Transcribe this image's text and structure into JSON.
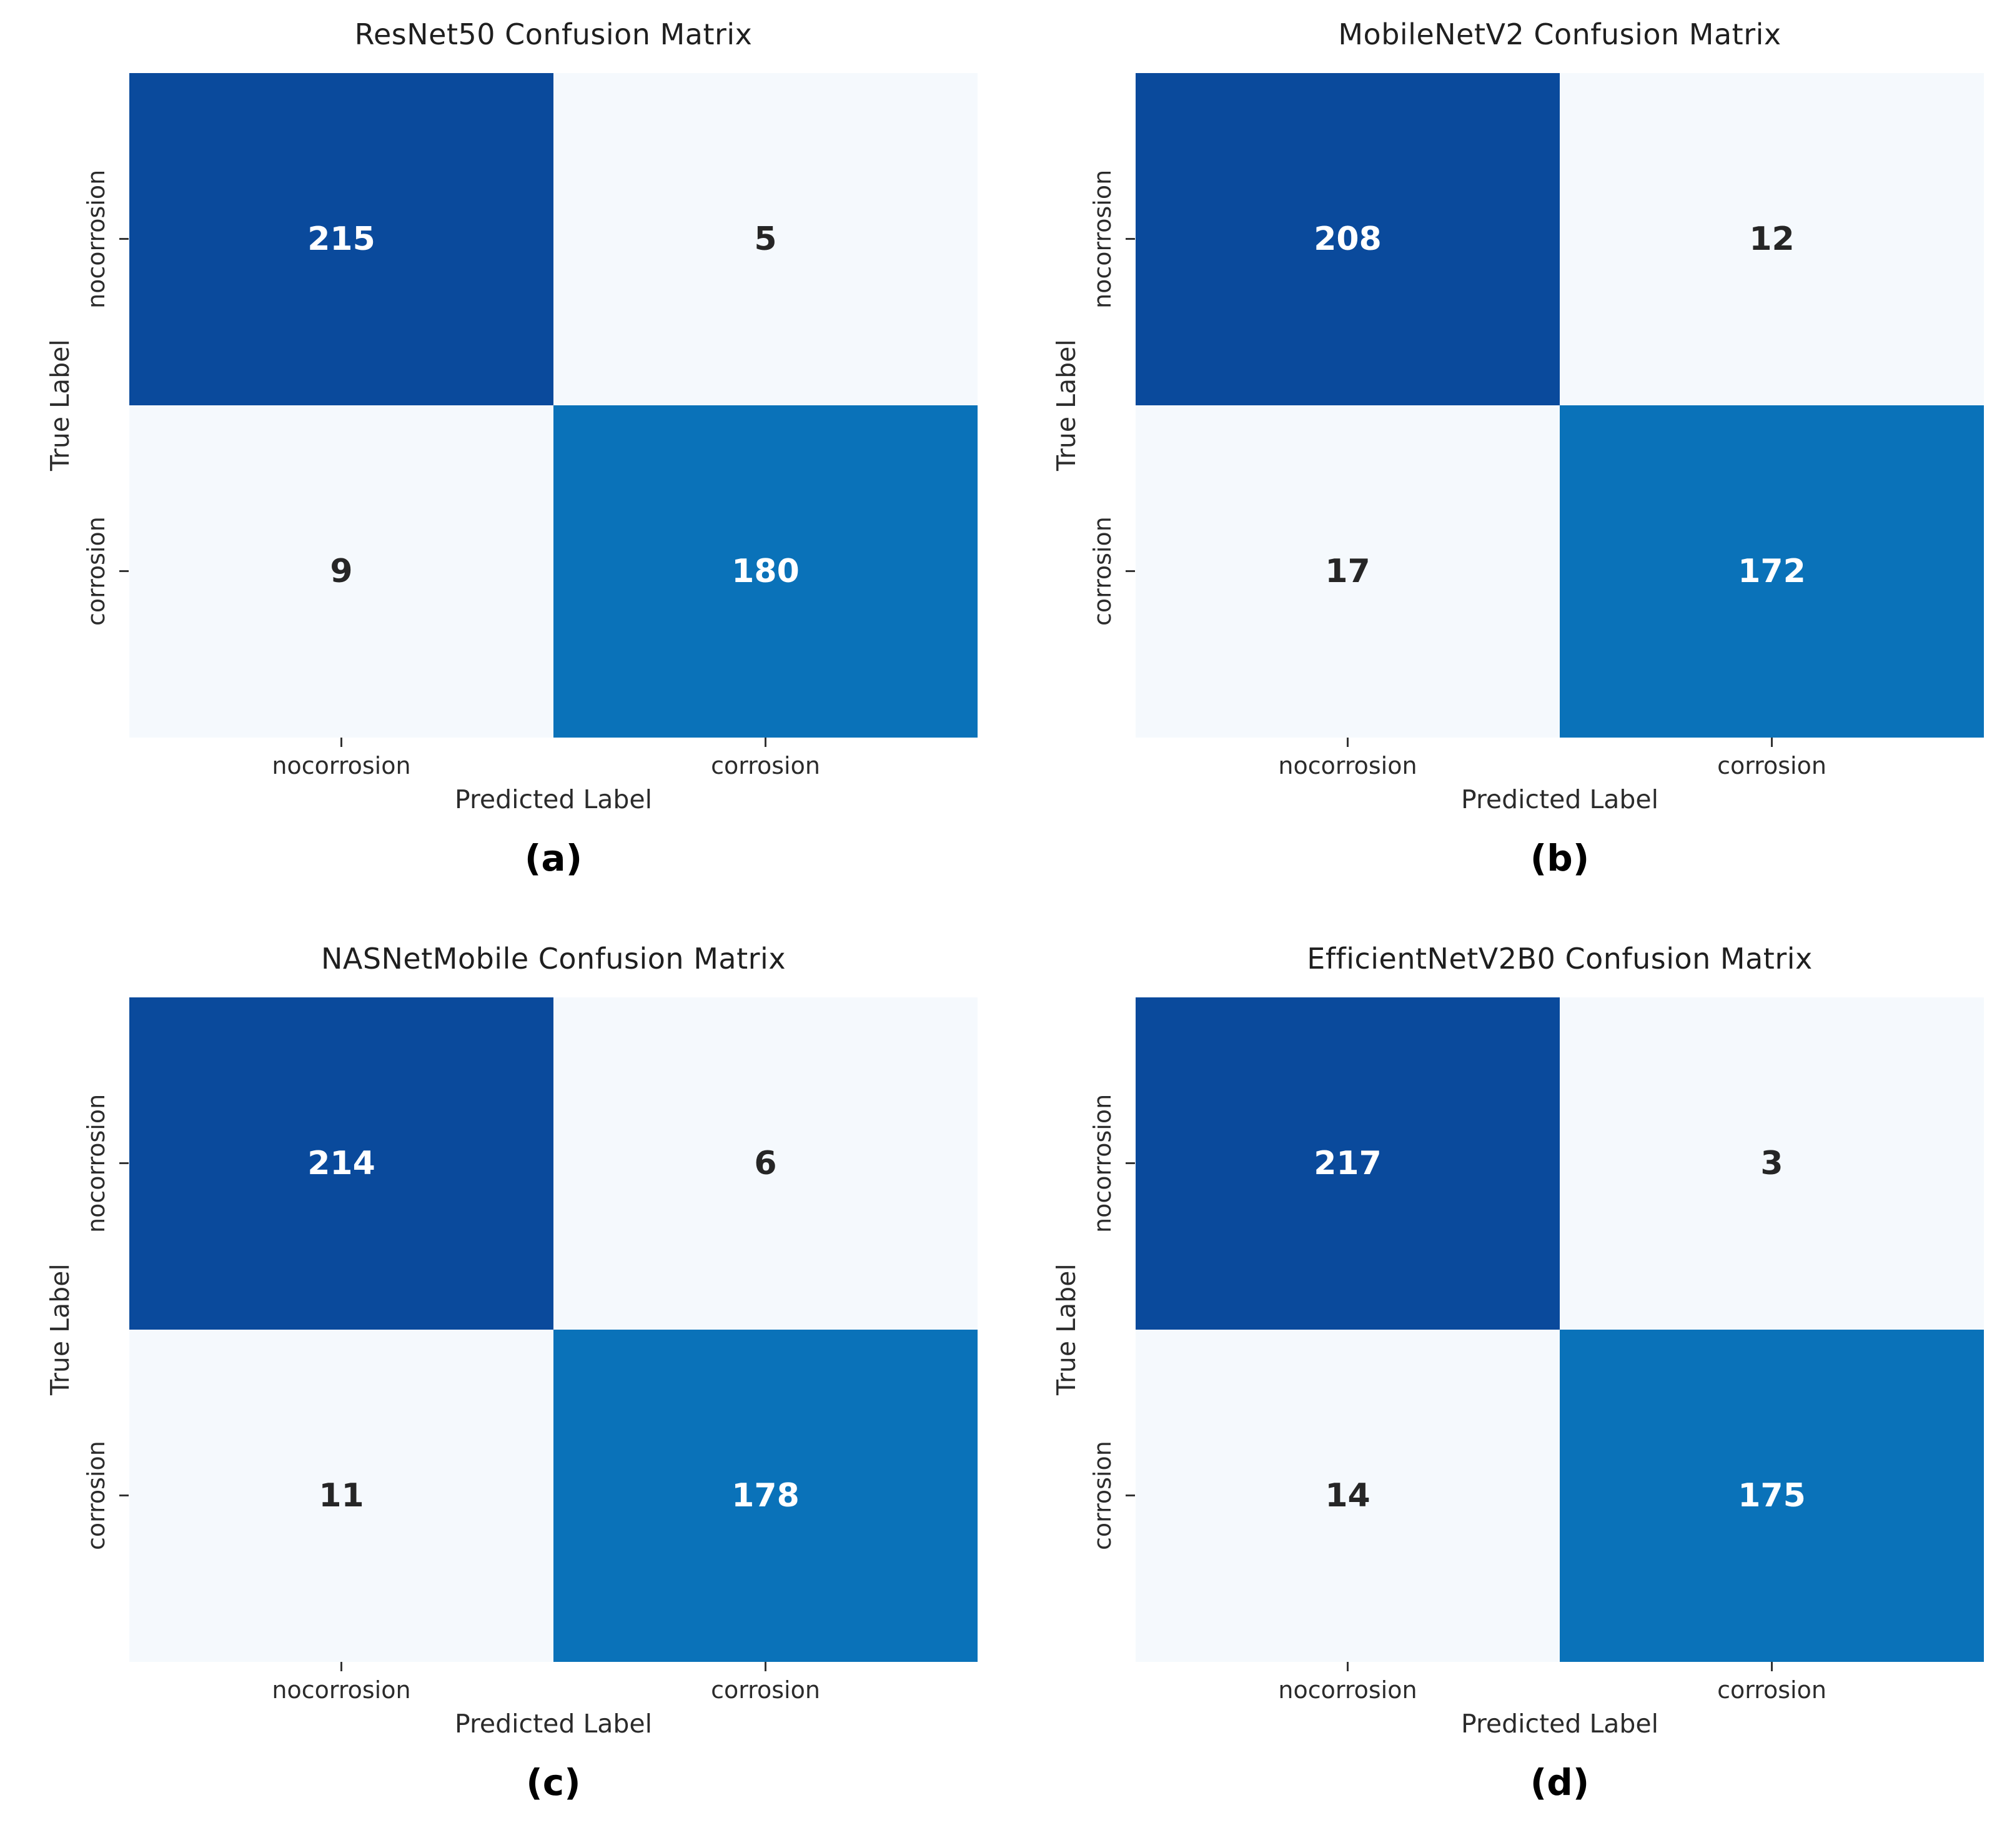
{
  "figure": {
    "class_labels": [
      "nocorrosion",
      "corrosion"
    ],
    "colors": {
      "page_bg": "#ffffff",
      "cell_dark": "#0a4a9c",
      "cell_medium": "#0a72b9",
      "cell_light": "#f5f9fd",
      "text_on_dark": "#ffffff",
      "text_on_light": "#262626",
      "axis_text": "#2b2b2b",
      "tick_mark": "#333333"
    }
  },
  "chart_data": [
    {
      "type": "heatmap",
      "title": "ResNet50 Confusion Matrix",
      "caption": "(a)",
      "xlabel": "Predicted Label",
      "ylabel": "True Label",
      "x_categories": [
        "nocorrosion",
        "corrosion"
      ],
      "y_categories": [
        "nocorrosion",
        "corrosion"
      ],
      "values": [
        [
          215,
          5
        ],
        [
          9,
          180
        ]
      ],
      "colormap": "Blues",
      "legend": "none"
    },
    {
      "type": "heatmap",
      "title": "MobileNetV2 Confusion Matrix",
      "caption": "(b)",
      "xlabel": "Predicted Label",
      "ylabel": "True Label",
      "x_categories": [
        "nocorrosion",
        "corrosion"
      ],
      "y_categories": [
        "nocorrosion",
        "corrosion"
      ],
      "values": [
        [
          208,
          12
        ],
        [
          17,
          172
        ]
      ],
      "colormap": "Blues",
      "legend": "none"
    },
    {
      "type": "heatmap",
      "title": "NASNetMobile Confusion Matrix",
      "caption": "(c)",
      "xlabel": "Predicted Label",
      "ylabel": "True Label",
      "x_categories": [
        "nocorrosion",
        "corrosion"
      ],
      "y_categories": [
        "nocorrosion",
        "corrosion"
      ],
      "values": [
        [
          214,
          6
        ],
        [
          11,
          178
        ]
      ],
      "colormap": "Blues",
      "legend": "none"
    },
    {
      "type": "heatmap",
      "title": "EfficientNetV2B0 Confusion Matrix",
      "caption": "(d)",
      "xlabel": "Predicted Label",
      "ylabel": "True Label",
      "x_categories": [
        "nocorrosion",
        "corrosion"
      ],
      "y_categories": [
        "nocorrosion",
        "corrosion"
      ],
      "values": [
        [
          217,
          3
        ],
        [
          14,
          175
        ]
      ],
      "colormap": "Blues",
      "legend": "none"
    }
  ]
}
